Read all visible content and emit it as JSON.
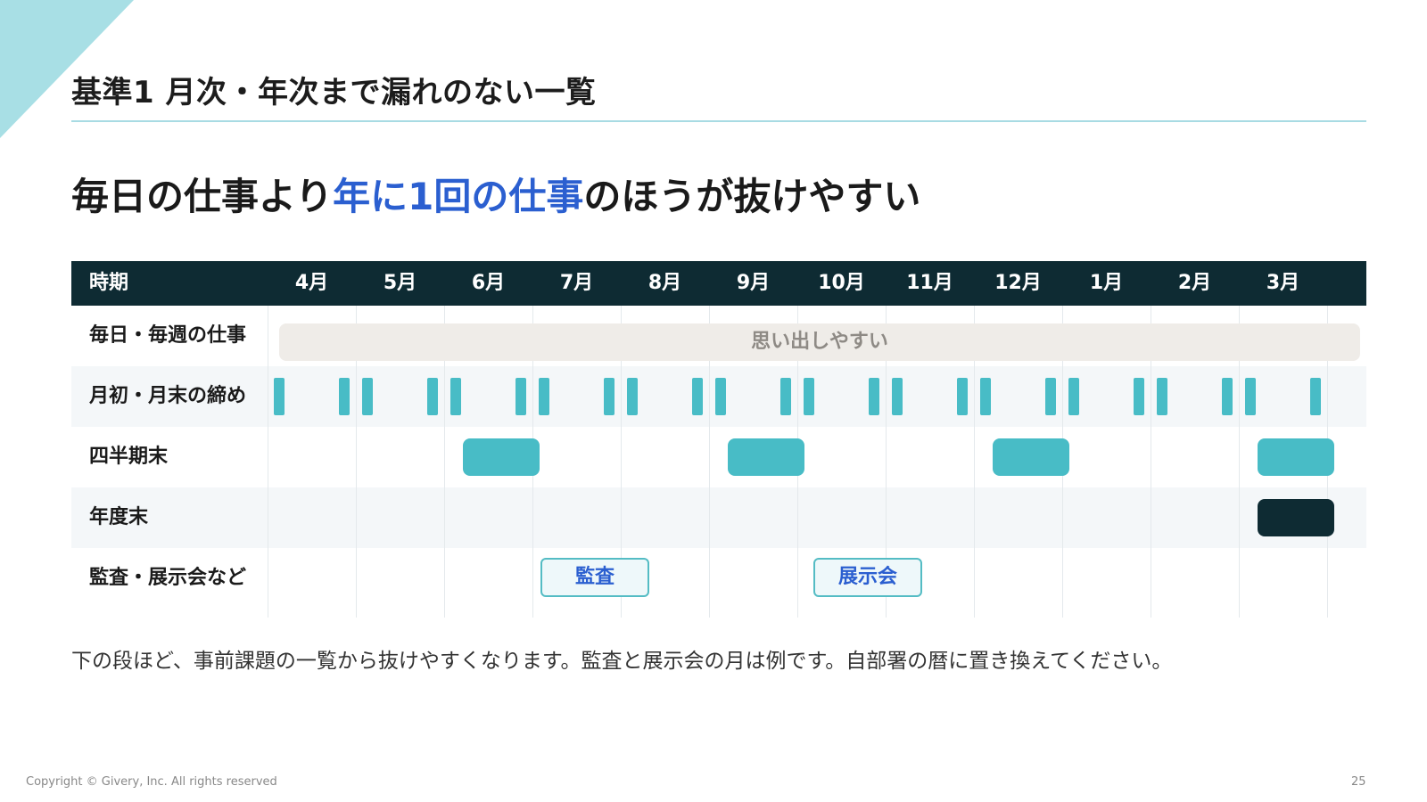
{
  "slide": {
    "section_title": "基準1 月次・年次まで漏れのない一覧",
    "headline": {
      "before": "毎日の仕事より",
      "highlight": "年に1回の仕事",
      "after": "のほうが抜けやすい"
    },
    "note": "下の段ほど、事前課題の一覧から抜けやすくなります。監査と展示会の月は例です。自部署の暦に置き換えてください。",
    "copyright": "Copyright © Givery, Inc. All rights reserved",
    "page_number": "25"
  },
  "table": {
    "header": [
      "時期",
      "4月",
      "5月",
      "6月",
      "7月",
      "8月",
      "9月",
      "10月",
      "11月",
      "12月",
      "1月",
      "2月",
      "3月"
    ],
    "rows": [
      {
        "label": "毎日・毎週の仕事",
        "band_text": "思い出しやすい"
      },
      {
        "label": "月初・月末の締め",
        "marks": "start and end of every month"
      },
      {
        "label": "四半期末",
        "months": [
          "6月",
          "9月",
          "12月",
          "3月"
        ]
      },
      {
        "label": "年度末",
        "months": [
          "3月"
        ]
      },
      {
        "label": "監査・展示会など",
        "events": [
          {
            "label": "監査",
            "month": "7月"
          },
          {
            "label": "展示会",
            "month": "10月"
          }
        ]
      }
    ]
  },
  "colors": {
    "header_bg": "#0e2b33",
    "accent_teal": "#48bcc6",
    "highlight_blue": "#2b5fd0",
    "band_gray": "#efece8",
    "corner_cyan": "#a8dfe5"
  }
}
